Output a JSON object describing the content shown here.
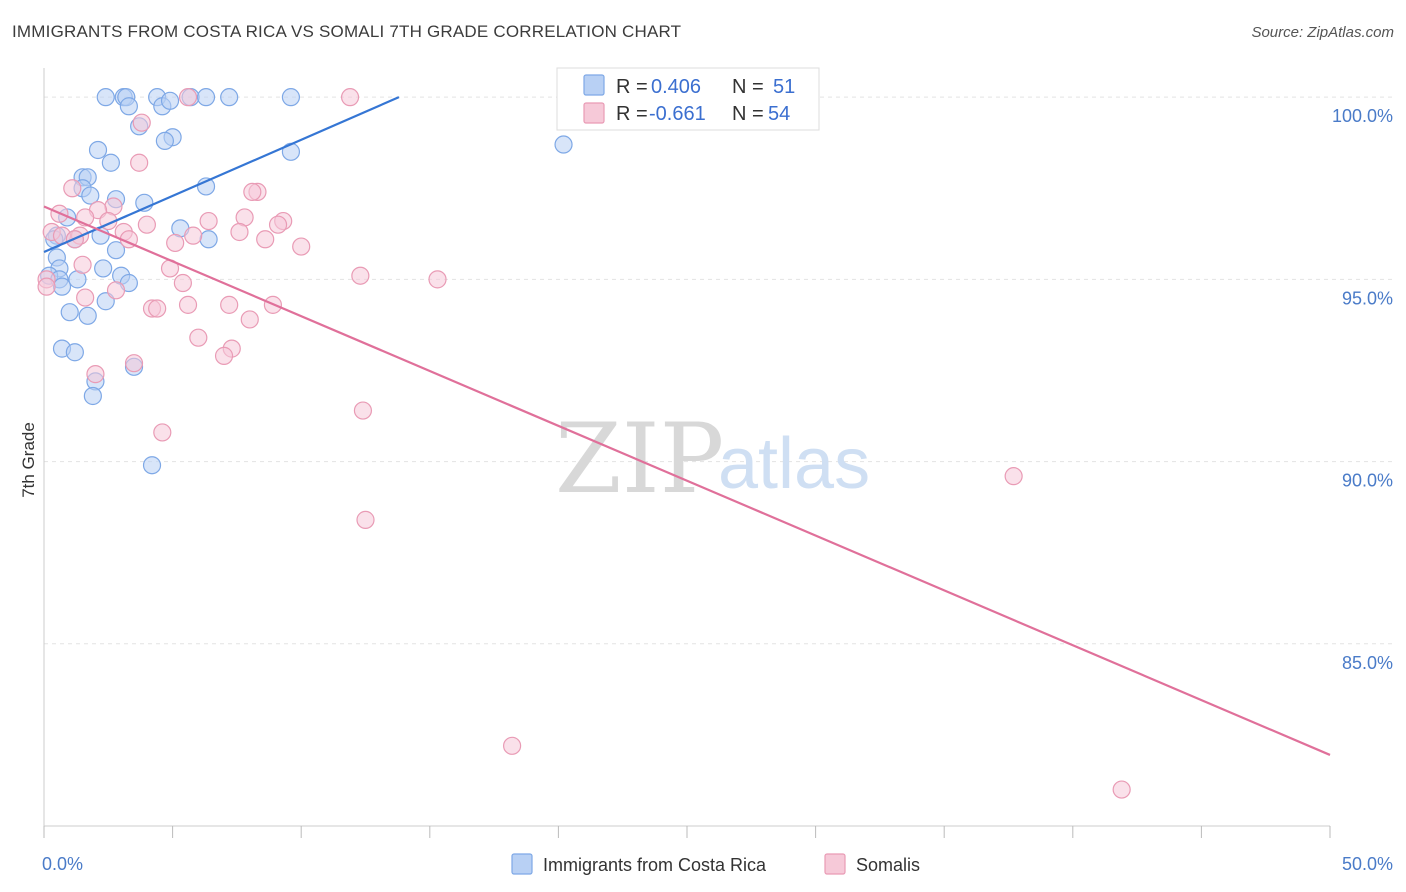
{
  "title": "IMMIGRANTS FROM COSTA RICA VS SOMALI 7TH GRADE CORRELATION CHART",
  "source": "Source: ZipAtlas.com",
  "watermark": {
    "zip": "ZIP",
    "atlas": "atlas"
  },
  "chart_data": {
    "type": "scatter",
    "ylabel": "7th Grade",
    "xlim": [
      0,
      50
    ],
    "ylim": [
      80.0,
      100.8
    ],
    "x_ticks": [
      0,
      5,
      10,
      15,
      20,
      25,
      30,
      35,
      40,
      45,
      50
    ],
    "x_tick_labels": [
      {
        "value": 0,
        "label": "0.0%"
      },
      {
        "value": 50,
        "label": "50.0%"
      }
    ],
    "y_ticks": [
      {
        "value": 100,
        "label": "100.0%"
      },
      {
        "value": 95,
        "label": "95.0%"
      },
      {
        "value": 90,
        "label": "90.0%"
      },
      {
        "value": 85,
        "label": "85.0%"
      }
    ],
    "legend": [
      {
        "series": "costa_rica",
        "r_label": "R =",
        "r_value": "0.406",
        "n_label": "N =",
        "n_value": "51"
      },
      {
        "series": "somali",
        "r_label": "R =",
        "r_value": "-0.661",
        "n_label": "N =",
        "n_value": "54"
      }
    ],
    "series": [
      {
        "key": "costa_rica",
        "name": "Immigrants from Costa Rica",
        "color": "#7ea8e6",
        "fill": "#b8d0f4",
        "line_color": "#3576d4",
        "trend": {
          "x0": 0,
          "y0": 95.75,
          "x1": 13.8,
          "y1": 100.0
        },
        "points": [
          [
            2.4,
            100
          ],
          [
            3.1,
            100
          ],
          [
            3.2,
            100
          ],
          [
            4.4,
            100
          ],
          [
            5.7,
            100
          ],
          [
            6.3,
            100
          ],
          [
            7.2,
            100
          ],
          [
            9.6,
            100
          ],
          [
            3.3,
            99.75
          ],
          [
            4.6,
            99.75
          ],
          [
            4.9,
            99.9
          ],
          [
            3.7,
            99.2
          ],
          [
            5.0,
            98.9
          ],
          [
            4.7,
            98.8
          ],
          [
            2.1,
            98.55
          ],
          [
            9.6,
            98.5
          ],
          [
            2.6,
            98.2
          ],
          [
            1.5,
            97.8
          ],
          [
            1.7,
            97.8
          ],
          [
            1.5,
            97.5
          ],
          [
            6.3,
            97.55
          ],
          [
            1.8,
            97.3
          ],
          [
            2.8,
            97.2
          ],
          [
            3.9,
            97.1
          ],
          [
            20.2,
            98.7
          ],
          [
            0.9,
            96.7
          ],
          [
            5.3,
            96.4
          ],
          [
            0.5,
            96.2
          ],
          [
            0.4,
            96.1
          ],
          [
            1.2,
            96.1
          ],
          [
            2.2,
            96.2
          ],
          [
            6.4,
            96.1
          ],
          [
            0.5,
            95.6
          ],
          [
            2.8,
            95.8
          ],
          [
            0.6,
            95.3
          ],
          [
            2.3,
            95.3
          ],
          [
            0.2,
            95.1
          ],
          [
            0.6,
            95.0
          ],
          [
            3.0,
            95.1
          ],
          [
            1.3,
            95.0
          ],
          [
            0.7,
            94.8
          ],
          [
            3.3,
            94.9
          ],
          [
            2.4,
            94.4
          ],
          [
            1.0,
            94.1
          ],
          [
            1.7,
            94.0
          ],
          [
            0.7,
            93.1
          ],
          [
            1.2,
            93.0
          ],
          [
            3.5,
            92.6
          ],
          [
            2.0,
            92.2
          ],
          [
            1.9,
            91.8
          ],
          [
            4.2,
            89.9
          ]
        ]
      },
      {
        "key": "somali",
        "name": "Somalis",
        "color": "#e99bb5",
        "fill": "#f6c9d8",
        "line_color": "#e0709a",
        "trend": {
          "x0": 0,
          "y0": 97.0,
          "x1": 50,
          "y1": 81.95
        },
        "points": [
          [
            11.9,
            100
          ],
          [
            5.6,
            100
          ],
          [
            3.8,
            99.3
          ],
          [
            3.7,
            98.2
          ],
          [
            1.1,
            97.5
          ],
          [
            8.3,
            97.4
          ],
          [
            8.1,
            97.4
          ],
          [
            2.7,
            97.0
          ],
          [
            2.1,
            96.9
          ],
          [
            7.8,
            96.7
          ],
          [
            0.6,
            96.8
          ],
          [
            2.5,
            96.6
          ],
          [
            1.6,
            96.7
          ],
          [
            9.3,
            96.6
          ],
          [
            4.0,
            96.5
          ],
          [
            6.4,
            96.6
          ],
          [
            9.1,
            96.5
          ],
          [
            0.3,
            96.3
          ],
          [
            3.1,
            96.3
          ],
          [
            7.6,
            96.3
          ],
          [
            0.7,
            96.2
          ],
          [
            1.4,
            96.2
          ],
          [
            3.3,
            96.1
          ],
          [
            8.6,
            96.1
          ],
          [
            5.1,
            96.0
          ],
          [
            10.0,
            95.9
          ],
          [
            1.2,
            96.1
          ],
          [
            0.1,
            95.0
          ],
          [
            0.1,
            94.8
          ],
          [
            1.5,
            95.4
          ],
          [
            4.9,
            95.3
          ],
          [
            12.3,
            95.1
          ],
          [
            15.3,
            95.0
          ],
          [
            2.8,
            94.7
          ],
          [
            5.4,
            94.9
          ],
          [
            1.6,
            94.5
          ],
          [
            4.2,
            94.2
          ],
          [
            4.4,
            94.2
          ],
          [
            5.6,
            94.3
          ],
          [
            7.2,
            94.3
          ],
          [
            8.9,
            94.3
          ],
          [
            8.0,
            93.9
          ],
          [
            6.0,
            93.4
          ],
          [
            7.3,
            93.1
          ],
          [
            7.0,
            92.9
          ],
          [
            3.5,
            92.7
          ],
          [
            2.0,
            92.4
          ],
          [
            12.4,
            91.4
          ],
          [
            4.6,
            90.8
          ],
          [
            37.7,
            89.6
          ],
          [
            12.5,
            88.4
          ],
          [
            18.2,
            82.2
          ],
          [
            41.9,
            81.0
          ],
          [
            5.8,
            96.2
          ]
        ]
      }
    ]
  }
}
